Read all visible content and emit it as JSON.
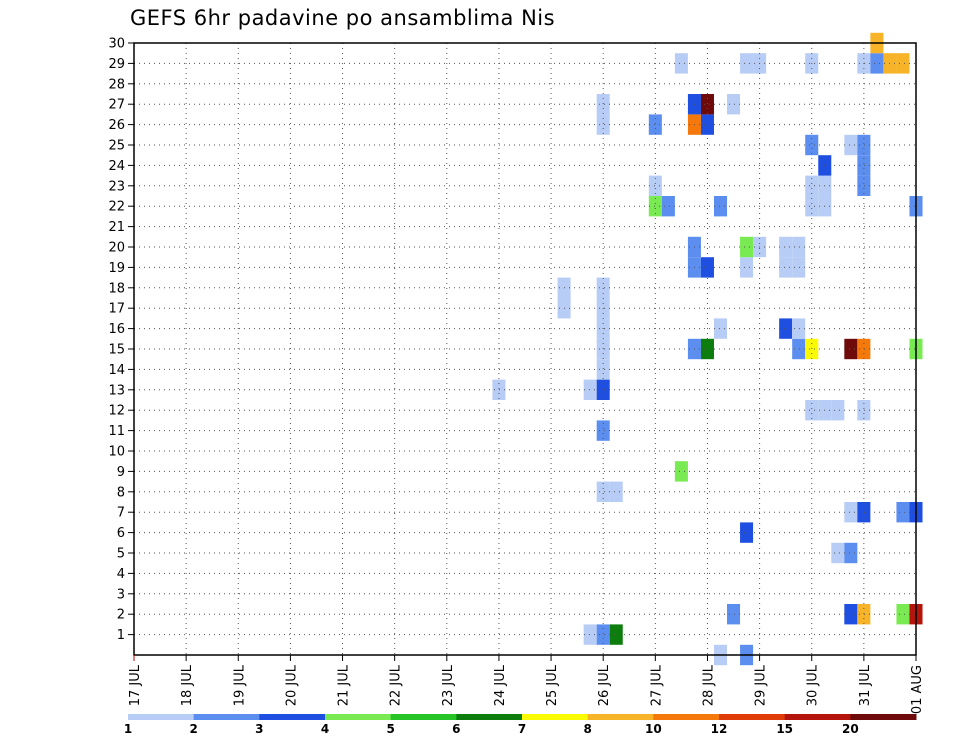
{
  "chart_data": {
    "type": "heatmap",
    "title": "GEFS 6hr padavine po ansamblima Nis",
    "xlabel": "",
    "ylabel": "",
    "x_tick_labels": [
      "17 JUL",
      "18 JUL",
      "19 JUL",
      "20 JUL",
      "21 JUL",
      "22 JUL",
      "23 JUL",
      "24 JUL",
      "25 JUL",
      "26 JUL",
      "27 JUL",
      "28 JUL",
      "29 JUL",
      "30 JUL",
      "31 JUL",
      "01 AUG"
    ],
    "x_range_days": [
      0,
      15
    ],
    "y_tick_labels": [
      "1",
      "2",
      "3",
      "4",
      "5",
      "6",
      "7",
      "8",
      "9",
      "10",
      "11",
      "12",
      "13",
      "14",
      "15",
      "16",
      "17",
      "18",
      "19",
      "20",
      "21",
      "22",
      "23",
      "24",
      "25",
      "26",
      "27",
      "28",
      "29",
      "30"
    ],
    "y_range": [
      0,
      30
    ],
    "grid": true,
    "colorbar": {
      "labels": [
        "1",
        "2",
        "3",
        "4",
        "5",
        "6",
        "7",
        "8",
        "10",
        "12",
        "15",
        "20"
      ],
      "colors": [
        "#b8cdf5",
        "#5c8ef0",
        "#1f4fe0",
        "#7aea52",
        "#27c427",
        "#0d7d0d",
        "#fafa00",
        "#f8b428",
        "#f4780a",
        "#e03c0a",
        "#b4140a",
        "#6e0a0a"
      ]
    },
    "cells": [
      {
        "member": 1,
        "day": "25 JUL",
        "hour": 18,
        "value": 1
      },
      {
        "member": 1,
        "day": "26 JUL",
        "hour": 0,
        "value": 2
      },
      {
        "member": 1,
        "day": "26 JUL",
        "hour": 6,
        "value": 6
      },
      {
        "member": 2,
        "day": "28 JUL",
        "hour": 12,
        "value": 2
      },
      {
        "member": 2,
        "day": "30 JUL",
        "hour": 18,
        "value": 3
      },
      {
        "member": 2,
        "day": "31 JUL",
        "hour": 0,
        "value": 8
      },
      {
        "member": 2,
        "day": "31 JUL",
        "hour": 18,
        "value": 4
      },
      {
        "member": 2,
        "day": "01 AUG",
        "hour": 0,
        "value": 15
      },
      {
        "member": 5,
        "day": "30 JUL",
        "hour": 12,
        "value": 1
      },
      {
        "member": 5,
        "day": "30 JUL",
        "hour": 18,
        "value": 2
      },
      {
        "member": 6,
        "day": "28 JUL",
        "hour": 18,
        "value": 3
      },
      {
        "member": 7,
        "day": "30 JUL",
        "hour": 18,
        "value": 1
      },
      {
        "member": 7,
        "day": "31 JUL",
        "hour": 0,
        "value": 3
      },
      {
        "member": 7,
        "day": "31 JUL",
        "hour": 18,
        "value": 2
      },
      {
        "member": 7,
        "day": "01 AUG",
        "hour": 0,
        "value": 3
      },
      {
        "member": 8,
        "day": "26 JUL",
        "hour": 0,
        "value": 1
      },
      {
        "member": 8,
        "day": "26 JUL",
        "hour": 6,
        "value": 1
      },
      {
        "member": 9,
        "day": "27 JUL",
        "hour": 12,
        "value": 4
      },
      {
        "member": 11,
        "day": "26 JUL",
        "hour": 0,
        "value": 2
      },
      {
        "member": 12,
        "day": "30 JUL",
        "hour": 0,
        "value": 1
      },
      {
        "member": 12,
        "day": "30 JUL",
        "hour": 6,
        "value": 1
      },
      {
        "member": 12,
        "day": "30 JUL",
        "hour": 12,
        "value": 1
      },
      {
        "member": 12,
        "day": "31 JUL",
        "hour": 0,
        "value": 1
      },
      {
        "member": 13,
        "day": "24 JUL",
        "hour": 0,
        "value": 1
      },
      {
        "member": 13,
        "day": "25 JUL",
        "hour": 18,
        "value": 1
      },
      {
        "member": 13,
        "day": "26 JUL",
        "hour": 0,
        "value": 3
      },
      {
        "member": 14,
        "day": "26 JUL",
        "hour": 0,
        "value": 1
      },
      {
        "member": 15,
        "day": "26 JUL",
        "hour": 0,
        "value": 1
      },
      {
        "member": 15,
        "day": "27 JUL",
        "hour": 18,
        "value": 2
      },
      {
        "member": 15,
        "day": "28 JUL",
        "hour": 0,
        "value": 6
      },
      {
        "member": 15,
        "day": "29 JUL",
        "hour": 18,
        "value": 2
      },
      {
        "member": 15,
        "day": "30 JUL",
        "hour": 0,
        "value": 7
      },
      {
        "member": 15,
        "day": "30 JUL",
        "hour": 18,
        "value": 20
      },
      {
        "member": 15,
        "day": "31 JUL",
        "hour": 0,
        "value": 10
      },
      {
        "member": 15,
        "day": "01 AUG",
        "hour": 0,
        "value": 4
      },
      {
        "member": 16,
        "day": "26 JUL",
        "hour": 0,
        "value": 1
      },
      {
        "member": 16,
        "day": "28 JUL",
        "hour": 6,
        "value": 1
      },
      {
        "member": 16,
        "day": "29 JUL",
        "hour": 12,
        "value": 3
      },
      {
        "member": 16,
        "day": "29 JUL",
        "hour": 18,
        "value": 1
      },
      {
        "member": 17,
        "day": "25 JUL",
        "hour": 6,
        "value": 1
      },
      {
        "member": 17,
        "day": "26 JUL",
        "hour": 0,
        "value": 1
      },
      {
        "member": 18,
        "day": "25 JUL",
        "hour": 6,
        "value": 1
      },
      {
        "member": 18,
        "day": "26 JUL",
        "hour": 0,
        "value": 1
      },
      {
        "member": 19,
        "day": "27 JUL",
        "hour": 18,
        "value": 2
      },
      {
        "member": 19,
        "day": "28 JUL",
        "hour": 0,
        "value": 3
      },
      {
        "member": 19,
        "day": "28 JUL",
        "hour": 18,
        "value": 1
      },
      {
        "member": 19,
        "day": "29 JUL",
        "hour": 12,
        "value": 1
      },
      {
        "member": 19,
        "day": "29 JUL",
        "hour": 18,
        "value": 1
      },
      {
        "member": 20,
        "day": "27 JUL",
        "hour": 18,
        "value": 2
      },
      {
        "member": 20,
        "day": "28 JUL",
        "hour": 18,
        "value": 4
      },
      {
        "member": 20,
        "day": "29 JUL",
        "hour": 0,
        "value": 1
      },
      {
        "member": 20,
        "day": "29 JUL",
        "hour": 12,
        "value": 1
      },
      {
        "member": 20,
        "day": "29 JUL",
        "hour": 18,
        "value": 1
      },
      {
        "member": 22,
        "day": "27 JUL",
        "hour": 0,
        "value": 4
      },
      {
        "member": 22,
        "day": "27 JUL",
        "hour": 6,
        "value": 2
      },
      {
        "member": 22,
        "day": "28 JUL",
        "hour": 6,
        "value": 2
      },
      {
        "member": 22,
        "day": "01 AUG",
        "hour": 0,
        "value": 2
      },
      {
        "member": 22,
        "day": "30 JUL",
        "hour": 0,
        "value": 1
      },
      {
        "member": 22,
        "day": "30 JUL",
        "hour": 6,
        "value": 1
      },
      {
        "member": 23,
        "day": "27 JUL",
        "hour": 0,
        "value": 1
      },
      {
        "member": 23,
        "day": "30 JUL",
        "hour": 0,
        "value": 1
      },
      {
        "member": 23,
        "day": "30 JUL",
        "hour": 6,
        "value": 1
      },
      {
        "member": 23,
        "day": "31 JUL",
        "hour": 0,
        "value": 2
      },
      {
        "member": 24,
        "day": "30 JUL",
        "hour": 6,
        "value": 3
      },
      {
        "member": 24,
        "day": "31 JUL",
        "hour": 0,
        "value": 2
      },
      {
        "member": 25,
        "day": "30 JUL",
        "hour": 0,
        "value": 2
      },
      {
        "member": 25,
        "day": "30 JUL",
        "hour": 18,
        "value": 1
      },
      {
        "member": 25,
        "day": "31 JUL",
        "hour": 0,
        "value": 2
      },
      {
        "member": 26,
        "day": "26 JUL",
        "hour": 0,
        "value": 1
      },
      {
        "member": 26,
        "day": "27 JUL",
        "hour": 0,
        "value": 2
      },
      {
        "member": 26,
        "day": "27 JUL",
        "hour": 18,
        "value": 10
      },
      {
        "member": 26,
        "day": "28 JUL",
        "hour": 0,
        "value": 3
      },
      {
        "member": 27,
        "day": "26 JUL",
        "hour": 0,
        "value": 1
      },
      {
        "member": 27,
        "day": "27 JUL",
        "hour": 18,
        "value": 3
      },
      {
        "member": 27,
        "day": "28 JUL",
        "hour": 0,
        "value": 20
      },
      {
        "member": 27,
        "day": "28 JUL",
        "hour": 12,
        "value": 1
      },
      {
        "member": 29,
        "day": "27 JUL",
        "hour": 12,
        "value": 1
      },
      {
        "member": 29,
        "day": "28 JUL",
        "hour": 18,
        "value": 1
      },
      {
        "member": 29,
        "day": "29 JUL",
        "hour": 0,
        "value": 1
      },
      {
        "member": 29,
        "day": "30 JUL",
        "hour": 0,
        "value": 1
      },
      {
        "member": 29,
        "day": "31 JUL",
        "hour": 0,
        "value": 1
      },
      {
        "member": 29,
        "day": "31 JUL",
        "hour": 6,
        "value": 2
      },
      {
        "member": 29,
        "day": "31 JUL",
        "hour": 12,
        "value": 8
      },
      {
        "member": 29,
        "day": "31 JUL",
        "hour": 18,
        "value": 8
      },
      {
        "member": 30,
        "day": "31 JUL",
        "hour": 6,
        "value": 8
      },
      {
        "member": 0,
        "day": "28 JUL",
        "hour": 6,
        "value": 1
      },
      {
        "member": 0,
        "day": "28 JUL",
        "hour": 18,
        "value": 2
      }
    ]
  }
}
